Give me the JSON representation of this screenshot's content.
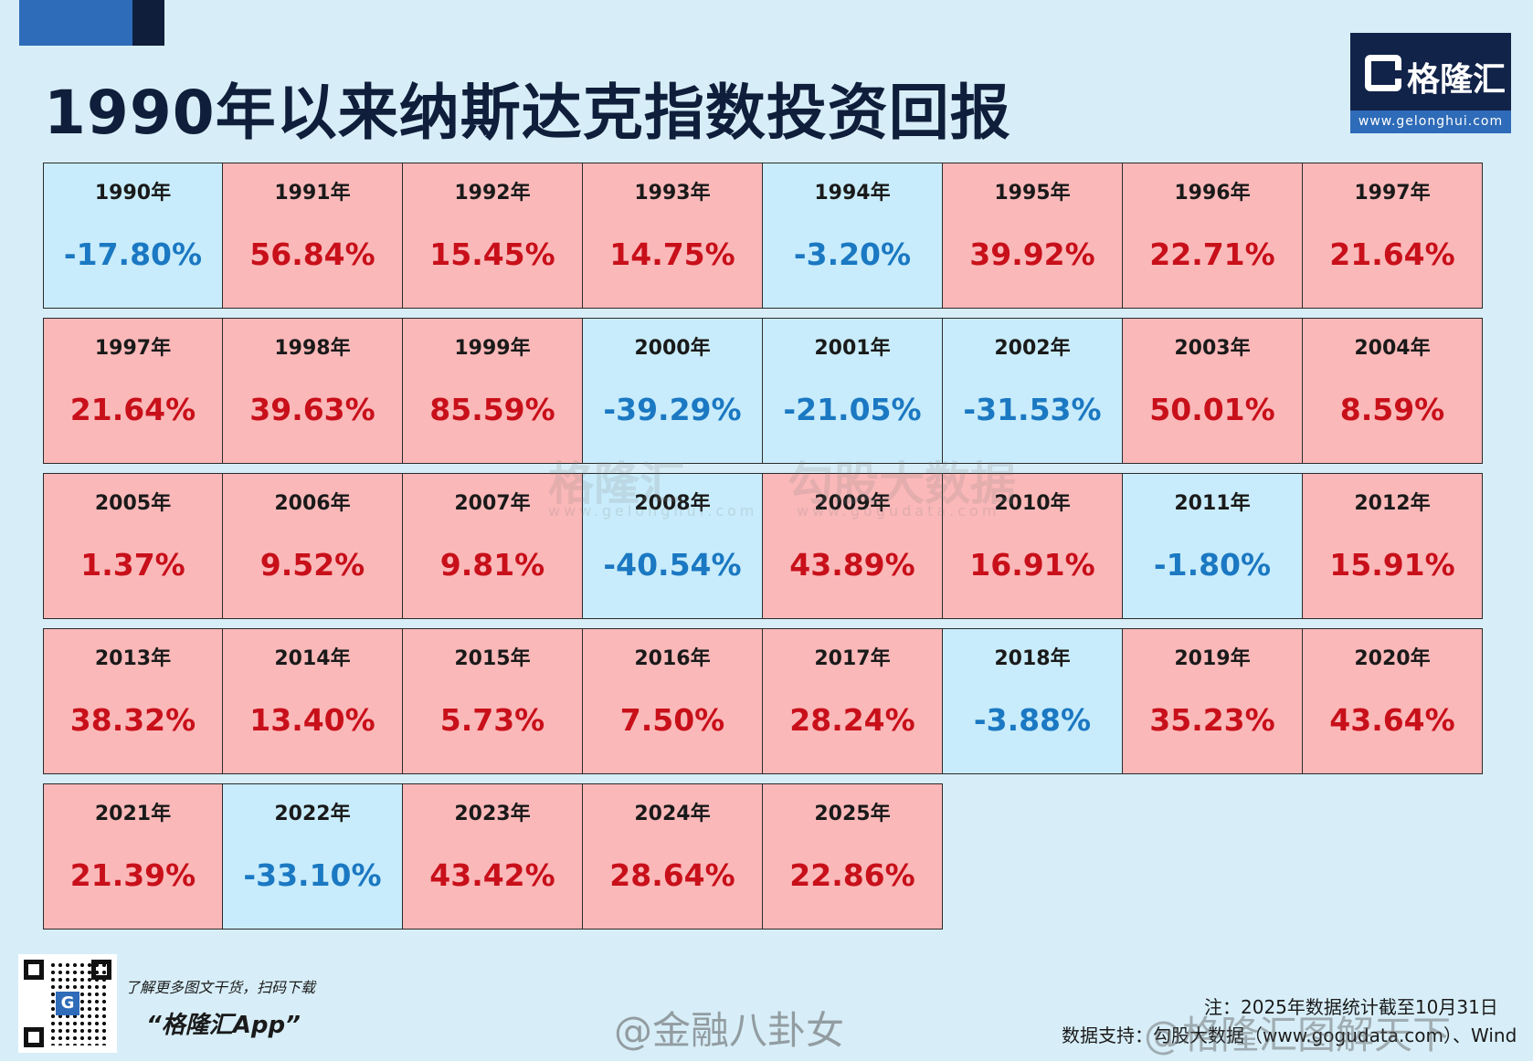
{
  "title": "1990年以来纳斯达克指数投资回报",
  "logo": {
    "name": "格隆汇",
    "url": "www.gelonghui.com"
  },
  "chart_data": {
    "type": "table",
    "title": "1990年以来纳斯达克指数投资回报",
    "columns": 8,
    "rows": [
      [
        {
          "year": "1990年",
          "value": "-17.80%",
          "sign": "neg"
        },
        {
          "year": "1991年",
          "value": "56.84%",
          "sign": "pos"
        },
        {
          "year": "1992年",
          "value": "15.45%",
          "sign": "pos"
        },
        {
          "year": "1993年",
          "value": "14.75%",
          "sign": "pos"
        },
        {
          "year": "1994年",
          "value": "-3.20%",
          "sign": "neg"
        },
        {
          "year": "1995年",
          "value": "39.92%",
          "sign": "pos"
        },
        {
          "year": "1996年",
          "value": "22.71%",
          "sign": "pos"
        },
        {
          "year": "1997年",
          "value": "21.64%",
          "sign": "pos"
        }
      ],
      [
        {
          "year": "1997年",
          "value": "21.64%",
          "sign": "pos"
        },
        {
          "year": "1998年",
          "value": "39.63%",
          "sign": "pos"
        },
        {
          "year": "1999年",
          "value": "85.59%",
          "sign": "pos"
        },
        {
          "year": "2000年",
          "value": "-39.29%",
          "sign": "neg"
        },
        {
          "year": "2001年",
          "value": "-21.05%",
          "sign": "neg"
        },
        {
          "year": "2002年",
          "value": "-31.53%",
          "sign": "neg"
        },
        {
          "year": "2003年",
          "value": "50.01%",
          "sign": "pos"
        },
        {
          "year": "2004年",
          "value": "8.59%",
          "sign": "pos"
        }
      ],
      [
        {
          "year": "2005年",
          "value": "1.37%",
          "sign": "pos"
        },
        {
          "year": "2006年",
          "value": "9.52%",
          "sign": "pos"
        },
        {
          "year": "2007年",
          "value": "9.81%",
          "sign": "pos"
        },
        {
          "year": "2008年",
          "value": "-40.54%",
          "sign": "neg"
        },
        {
          "year": "2009年",
          "value": "43.89%",
          "sign": "pos"
        },
        {
          "year": "2010年",
          "value": "16.91%",
          "sign": "pos"
        },
        {
          "year": "2011年",
          "value": "-1.80%",
          "sign": "neg"
        },
        {
          "year": "2012年",
          "value": "15.91%",
          "sign": "pos"
        }
      ],
      [
        {
          "year": "2013年",
          "value": "38.32%",
          "sign": "pos"
        },
        {
          "year": "2014年",
          "value": "13.40%",
          "sign": "pos"
        },
        {
          "year": "2015年",
          "value": "5.73%",
          "sign": "pos"
        },
        {
          "year": "2016年",
          "value": "7.50%",
          "sign": "pos"
        },
        {
          "year": "2017年",
          "value": "28.24%",
          "sign": "pos"
        },
        {
          "year": "2018年",
          "value": "-3.88%",
          "sign": "neg"
        },
        {
          "year": "2019年",
          "value": "35.23%",
          "sign": "pos"
        },
        {
          "year": "2020年",
          "value": "43.64%",
          "sign": "pos"
        }
      ],
      [
        {
          "year": "2021年",
          "value": "21.39%",
          "sign": "pos"
        },
        {
          "year": "2022年",
          "value": "-33.10%",
          "sign": "neg"
        },
        {
          "year": "2023年",
          "value": "43.42%",
          "sign": "pos"
        },
        {
          "year": "2024年",
          "value": "28.64%",
          "sign": "pos"
        },
        {
          "year": "2025年",
          "value": "22.86%",
          "sign": "pos"
        }
      ]
    ]
  },
  "colors": {
    "positive_bg": "#fbb8b9",
    "negative_bg": "#c8ecfb",
    "positive_text": "#c8101a",
    "negative_text": "#1b78c2"
  },
  "watermarks": {
    "gelonghui": "格隆汇",
    "gelonghui_url": "www.gelonghui.com",
    "gogu": "勾股大数据",
    "gogu_url": "www.gogudata.com",
    "weibo_center": "@金融八卦女",
    "weibo_right": "@格隆汇图解天下"
  },
  "footer": {
    "promo_text": "了解更多图文干货，扫码下载",
    "promo_app": "“格隆汇App”",
    "note": "注：2025年数据统计截至10月31日",
    "source": "数据支持：勾股大数据（www.gogudata.com）、Wind"
  }
}
